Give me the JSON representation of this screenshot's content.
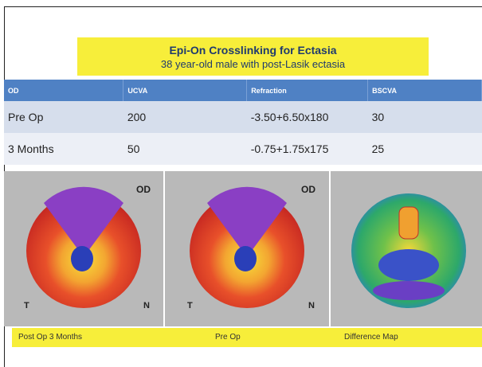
{
  "header": {
    "title": "Epi-On Crosslinking for Ectasia",
    "subtitle": "38 year-old male with post-Lasik ectasia"
  },
  "table": {
    "columns": [
      "OD",
      "UCVA",
      "Refraction",
      "BSCVA"
    ],
    "rows": [
      [
        "Pre Op",
        "200",
        "-3.50+6.50x180",
        "30"
      ],
      [
        "3 Months",
        "50",
        "-0.75+1.75x175",
        "25"
      ]
    ]
  },
  "maps": [
    {
      "eye": "OD",
      "temporal": "T",
      "nasal": "N"
    },
    {
      "eye": "OD",
      "temporal": "T",
      "nasal": "N"
    }
  ],
  "captions": [
    "Post Op 3 Months",
    "Pre Op",
    "Difference Map"
  ]
}
